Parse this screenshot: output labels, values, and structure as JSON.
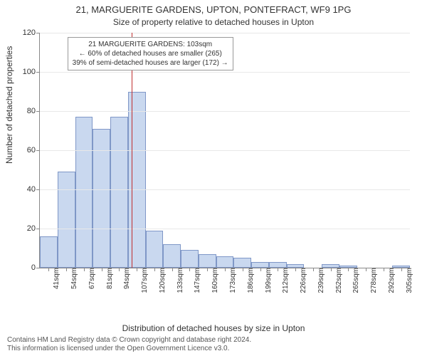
{
  "header": {
    "title_main": "21, MARGUERITE GARDENS, UPTON, PONTEFRACT, WF9 1PG",
    "title_sub": "Size of property relative to detached houses in Upton"
  },
  "axes": {
    "ylabel": "Number of detached properties",
    "xlabel": "Distribution of detached houses by size in Upton"
  },
  "footer": {
    "line1": "Contains HM Land Registry data © Crown copyright and database right 2024.",
    "line2": "This information is licensed under the Open Government Licence v3.0."
  },
  "chart": {
    "type": "histogram",
    "ylim": [
      0,
      120
    ],
    "ytick_step": 20,
    "bar_fill": "#c9d8ef",
    "bar_stroke": "#7f97c7",
    "grid_color": "#e8e8e8",
    "axis_color": "#888888",
    "background_color": "#ffffff",
    "label_fontsize": 12,
    "tick_fontsize": 11,
    "categories": [
      "41sqm",
      "54sqm",
      "67sqm",
      "81sqm",
      "94sqm",
      "107sqm",
      "120sqm",
      "133sqm",
      "147sqm",
      "160sqm",
      "173sqm",
      "186sqm",
      "199sqm",
      "212sqm",
      "226sqm",
      "239sqm",
      "252sqm",
      "265sqm",
      "278sqm",
      "292sqm",
      "305sqm"
    ],
    "values": [
      16,
      49,
      77,
      71,
      77,
      90,
      19,
      12,
      9,
      7,
      6,
      5,
      3,
      3,
      2,
      0,
      2,
      1,
      0,
      0,
      1
    ],
    "marker": {
      "value_sqm": 103,
      "bin_low": 41,
      "bin_step": 13.2,
      "color": "#c03030"
    }
  },
  "annotation": {
    "line1": "21 MARGUERITE GARDENS: 103sqm",
    "line2": "← 60% of detached houses are smaller (265)",
    "line3": "39% of semi-detached houses are larger (172) →"
  }
}
